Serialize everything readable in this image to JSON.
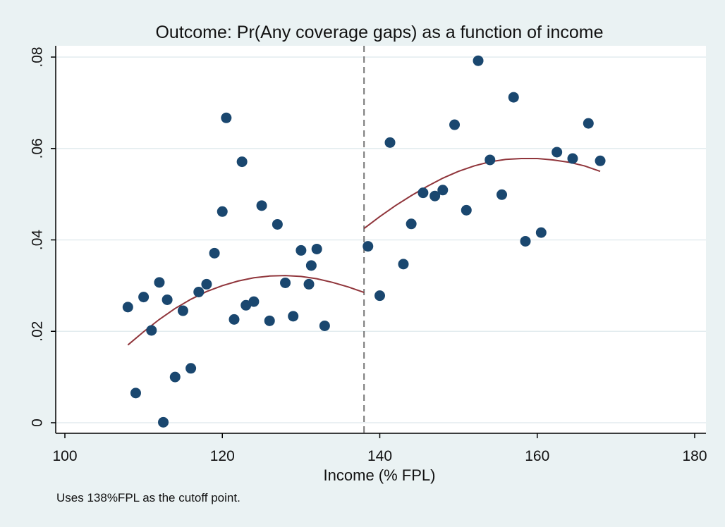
{
  "chart_data": {
    "type": "scatter",
    "title": "Outcome: Pr(Any coverage gaps) as a function of income",
    "xlabel": "Income (% FPL)",
    "ylabel": "",
    "note": "Uses 138%FPL as the cutoff point.",
    "xlim": [
      100,
      180
    ],
    "ylim": [
      0,
      0.08
    ],
    "x_ticks": [
      100,
      120,
      140,
      160,
      180
    ],
    "x_tick_labels": [
      "100",
      "120",
      "140",
      "160",
      "180"
    ],
    "y_ticks": [
      0,
      0.02,
      0.04,
      0.06,
      0.08
    ],
    "y_tick_labels": [
      "0",
      ".02",
      ".04",
      ".06",
      ".08"
    ],
    "grid": true,
    "cutoff_x": 138,
    "colors": {
      "background": "#eaf2f3",
      "plot": "#ffffff",
      "grid": "#e3ecef",
      "points": "#1a476f",
      "fit": "#90353b",
      "cutoff": "#777777"
    },
    "points": [
      {
        "x": 108,
        "y": 0.0253
      },
      {
        "x": 109,
        "y": 0.0065
      },
      {
        "x": 110,
        "y": 0.0275
      },
      {
        "x": 111,
        "y": 0.0202
      },
      {
        "x": 112,
        "y": 0.0307
      },
      {
        "x": 112.5,
        "y": 0.0001
      },
      {
        "x": 113,
        "y": 0.0269
      },
      {
        "x": 114,
        "y": 0.01
      },
      {
        "x": 115,
        "y": 0.0245
      },
      {
        "x": 116,
        "y": 0.0119
      },
      {
        "x": 117,
        "y": 0.0286
      },
      {
        "x": 118,
        "y": 0.0303
      },
      {
        "x": 119,
        "y": 0.0371
      },
      {
        "x": 120,
        "y": 0.0462
      },
      {
        "x": 120.5,
        "y": 0.0667
      },
      {
        "x": 121.5,
        "y": 0.0226
      },
      {
        "x": 122.5,
        "y": 0.0571
      },
      {
        "x": 123,
        "y": 0.0257
      },
      {
        "x": 124,
        "y": 0.0265
      },
      {
        "x": 125,
        "y": 0.0475
      },
      {
        "x": 126,
        "y": 0.0223
      },
      {
        "x": 127,
        "y": 0.0434
      },
      {
        "x": 128,
        "y": 0.0306
      },
      {
        "x": 129,
        "y": 0.0233
      },
      {
        "x": 130,
        "y": 0.0377
      },
      {
        "x": 131,
        "y": 0.0303
      },
      {
        "x": 131.3,
        "y": 0.0344
      },
      {
        "x": 132,
        "y": 0.038
      },
      {
        "x": 133,
        "y": 0.0212
      },
      {
        "x": 138.5,
        "y": 0.0386
      },
      {
        "x": 140,
        "y": 0.0278
      },
      {
        "x": 141.3,
        "y": 0.0613
      },
      {
        "x": 143,
        "y": 0.0347
      },
      {
        "x": 144,
        "y": 0.0435
      },
      {
        "x": 145.5,
        "y": 0.0503
      },
      {
        "x": 147,
        "y": 0.0496
      },
      {
        "x": 148,
        "y": 0.0509
      },
      {
        "x": 149.5,
        "y": 0.0652
      },
      {
        "x": 151,
        "y": 0.0465
      },
      {
        "x": 152.5,
        "y": 0.0792
      },
      {
        "x": 154,
        "y": 0.0575
      },
      {
        "x": 155.5,
        "y": 0.0499
      },
      {
        "x": 157,
        "y": 0.0712
      },
      {
        "x": 158.5,
        "y": 0.0397
      },
      {
        "x": 160.5,
        "y": 0.0416
      },
      {
        "x": 162.5,
        "y": 0.0592
      },
      {
        "x": 164.5,
        "y": 0.0578
      },
      {
        "x": 166.5,
        "y": 0.0655
      },
      {
        "x": 168,
        "y": 0.0573
      }
    ],
    "fit_lines": [
      {
        "segment": "below_cutoff",
        "x": [
          108,
          110,
          112,
          114,
          116,
          118,
          120,
          122,
          124,
          126,
          128,
          130,
          132,
          134,
          136,
          138
        ],
        "y": [
          0.017,
          0.0199,
          0.0226,
          0.025,
          0.027,
          0.0287,
          0.03,
          0.031,
          0.0317,
          0.0321,
          0.0322,
          0.032,
          0.0315,
          0.0307,
          0.0297,
          0.0285
        ]
      },
      {
        "segment": "above_cutoff",
        "x": [
          138,
          140,
          142,
          144,
          146,
          148,
          150,
          152,
          154,
          156,
          158,
          160,
          162,
          164,
          166,
          168
        ],
        "y": [
          0.0425,
          0.0451,
          0.0475,
          0.0497,
          0.0517,
          0.0535,
          0.055,
          0.0562,
          0.0571,
          0.0576,
          0.0578,
          0.0578,
          0.0575,
          0.057,
          0.0562,
          0.055
        ]
      }
    ]
  }
}
